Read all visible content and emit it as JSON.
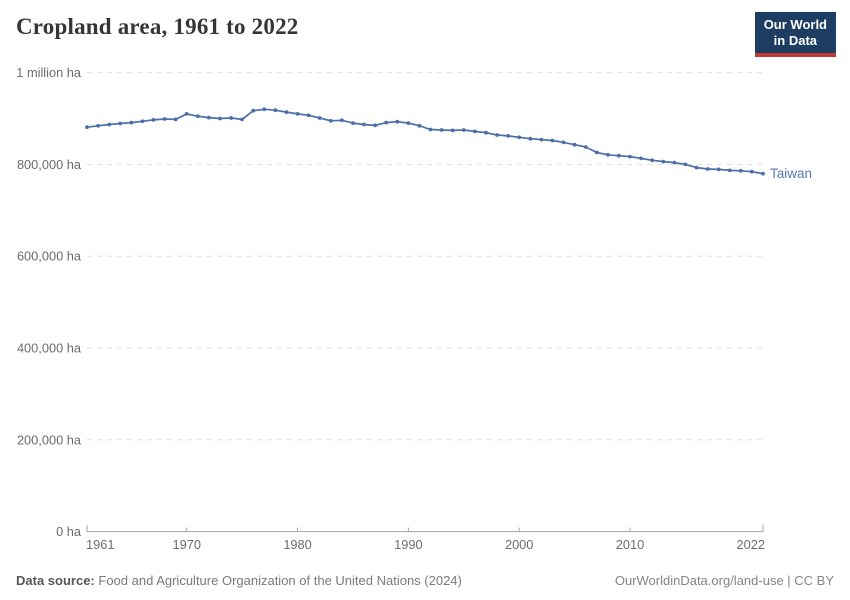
{
  "header": {
    "title": "Cropland area, 1961 to 2022",
    "logo": {
      "line1": "Our World",
      "line2": "in Data"
    }
  },
  "chart_data": {
    "type": "line",
    "title": "Cropland area, 1961 to 2022",
    "unit": "ha",
    "grid": "horizontal-dashed",
    "legend": "end-of-line-label",
    "xlim": [
      1961,
      2022
    ],
    "ylim": [
      0,
      1000000
    ],
    "x": [
      1961,
      1962,
      1963,
      1964,
      1965,
      1966,
      1967,
      1968,
      1969,
      1970,
      1971,
      1972,
      1973,
      1974,
      1975,
      1976,
      1977,
      1978,
      1979,
      1980,
      1981,
      1982,
      1983,
      1984,
      1985,
      1986,
      1987,
      1988,
      1989,
      1990,
      1991,
      1992,
      1993,
      1994,
      1995,
      1996,
      1997,
      1998,
      1999,
      2000,
      2001,
      2002,
      2003,
      2004,
      2005,
      2006,
      2007,
      2008,
      2009,
      2010,
      2011,
      2012,
      2013,
      2014,
      2015,
      2016,
      2017,
      2018,
      2019,
      2020,
      2021,
      2022
    ],
    "series": [
      {
        "name": "Taiwan",
        "values": [
          881000,
          884000,
          887000,
          889000,
          891000,
          894000,
          897000,
          899000,
          898000,
          910000,
          905000,
          902000,
          900000,
          901000,
          898000,
          917000,
          920000,
          918000,
          914000,
          910000,
          907000,
          901000,
          895000,
          896000,
          890000,
          887000,
          885000,
          891000,
          893000,
          890000,
          884000,
          876000,
          875000,
          874000,
          875000,
          872000,
          869000,
          864000,
          862000,
          859000,
          856000,
          854000,
          852000,
          848000,
          843000,
          838000,
          826000,
          821000,
          819000,
          817000,
          813000,
          809000,
          806000,
          804000,
          800000,
          793000,
          790000,
          789000,
          787000,
          786000,
          784000,
          780000
        ]
      }
    ],
    "x_ticks": [
      1961,
      1970,
      1980,
      1990,
      2000,
      2010,
      2022
    ],
    "y_ticks": [
      {
        "value": 0,
        "label": "0 ha"
      },
      {
        "value": 200000,
        "label": "200,000 ha"
      },
      {
        "value": 400000,
        "label": "400,000 ha"
      },
      {
        "value": 600000,
        "label": "600,000 ha"
      },
      {
        "value": 800000,
        "label": "800,000 ha"
      },
      {
        "value": 1000000,
        "label": "1 million ha"
      }
    ],
    "end_label": "Taiwan",
    "colors": {
      "line": "#4C6FA8",
      "end_label": "#577BB3",
      "grid": "#dedede",
      "axis": "#a5a5a5",
      "tick_text": "#6c6c6c"
    }
  },
  "footer": {
    "source_label": "Data source:",
    "source_text": "Food and Agriculture Organization of the United Nations (2024)",
    "right_text": "OurWorldinData.org/land-use | CC BY"
  }
}
